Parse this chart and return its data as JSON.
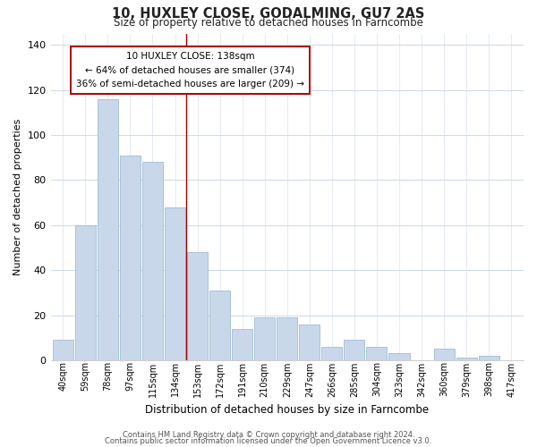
{
  "title": "10, HUXLEY CLOSE, GODALMING, GU7 2AS",
  "subtitle": "Size of property relative to detached houses in Farncombe",
  "xlabel": "Distribution of detached houses by size in Farncombe",
  "ylabel": "Number of detached properties",
  "bar_labels": [
    "40sqm",
    "59sqm",
    "78sqm",
    "97sqm",
    "115sqm",
    "134sqm",
    "153sqm",
    "172sqm",
    "191sqm",
    "210sqm",
    "229sqm",
    "247sqm",
    "266sqm",
    "285sqm",
    "304sqm",
    "323sqm",
    "342sqm",
    "360sqm",
    "379sqm",
    "398sqm",
    "417sqm"
  ],
  "bar_values": [
    9,
    60,
    116,
    91,
    88,
    68,
    48,
    31,
    14,
    19,
    19,
    16,
    6,
    9,
    6,
    3,
    0,
    5,
    1,
    2,
    0
  ],
  "bar_color": "#c8d8ea",
  "bar_edge_color": "#a0bcd4",
  "vline_x": 5.5,
  "vline_color": "#aa0000",
  "ylim": [
    0,
    145
  ],
  "yticks": [
    0,
    20,
    40,
    60,
    80,
    100,
    120,
    140
  ],
  "annotation_title": "10 HUXLEY CLOSE: 138sqm",
  "annotation_line1": "← 64% of detached houses are smaller (374)",
  "annotation_line2": "36% of semi-detached houses are larger (209) →",
  "annotation_box_color": "#ffffff",
  "annotation_box_edge": "#aa0000",
  "footer1": "Contains HM Land Registry data © Crown copyright and database right 2024.",
  "footer2": "Contains public sector information licensed under the Open Government Licence v3.0.",
  "background_color": "#ffffff",
  "grid_color": "#d0dce8"
}
